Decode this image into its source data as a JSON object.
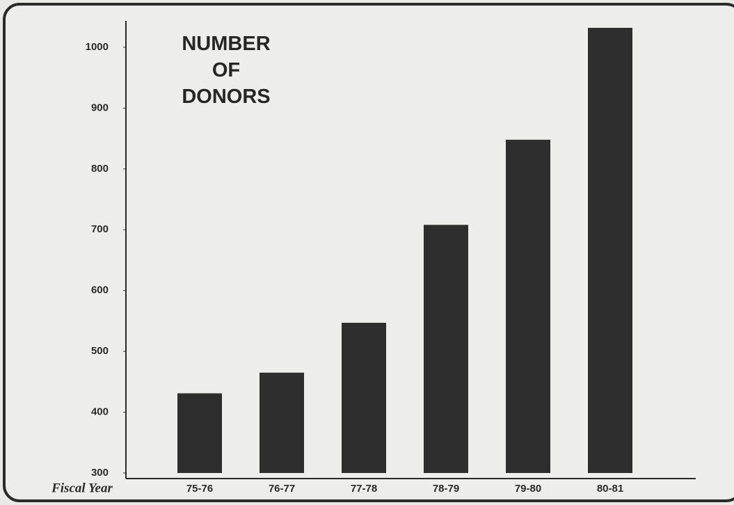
{
  "chart_data": {
    "type": "bar",
    "title": "NUMBER OF DONORS",
    "x_label": "Fiscal Year",
    "categories": [
      "75-76",
      "76-77",
      "77-78",
      "78-79",
      "79-80",
      "80-81"
    ],
    "values": [
      431,
      465,
      547,
      708,
      848,
      1032
    ],
    "color": "#2e2e2e",
    "ylim": [
      300,
      1040
    ],
    "yticks": [
      300,
      400,
      500,
      600,
      700,
      800,
      900,
      1000
    ],
    "grid": false
  }
}
